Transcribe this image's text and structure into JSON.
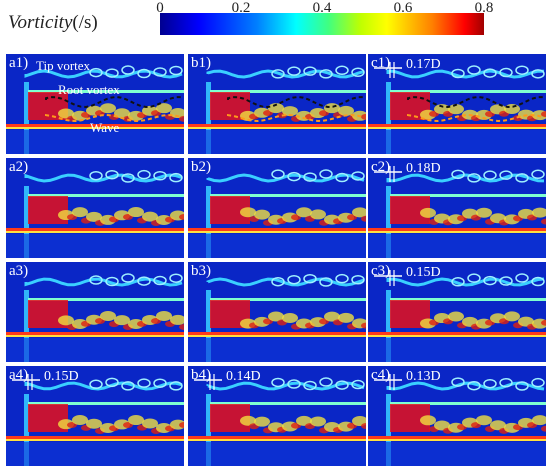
{
  "colorbar": {
    "title": "Vorticity",
    "unit": "(/s)",
    "ticks": [
      "0",
      "0.2",
      "0.4",
      "0.6",
      "0.8"
    ]
  },
  "panels": [
    {
      "id": "a1",
      "label": "a1)",
      "annotations": {
        "tip": "Tip vortex",
        "root": "Root vortex",
        "wave": "Wave"
      },
      "measure": ""
    },
    {
      "id": "b1",
      "label": "b1)",
      "measure": ""
    },
    {
      "id": "c1",
      "label": "c1)",
      "measure": "0.17D"
    },
    {
      "id": "a2",
      "label": "a2)",
      "measure": ""
    },
    {
      "id": "b2",
      "label": "b2)",
      "measure": ""
    },
    {
      "id": "c2",
      "label": "c2)",
      "measure": "0.18D"
    },
    {
      "id": "a3",
      "label": "a3)",
      "measure": ""
    },
    {
      "id": "b3",
      "label": "b3)",
      "measure": ""
    },
    {
      "id": "c3",
      "label": "c3)",
      "measure": "0.15D"
    },
    {
      "id": "a4",
      "label": "a4)",
      "measure": "0.15D"
    },
    {
      "id": "b4",
      "label": "b4)",
      "measure": "0.14D"
    },
    {
      "id": "c4",
      "label": "c4)",
      "measure": "0.13D"
    }
  ],
  "colors": {
    "background": "#0a26c6",
    "tip": "#3ad0ff",
    "root": "#7fffd0",
    "wave": "#ff3a1a",
    "dash_black": "#111111",
    "dash_orange": "#ff9a1a"
  }
}
